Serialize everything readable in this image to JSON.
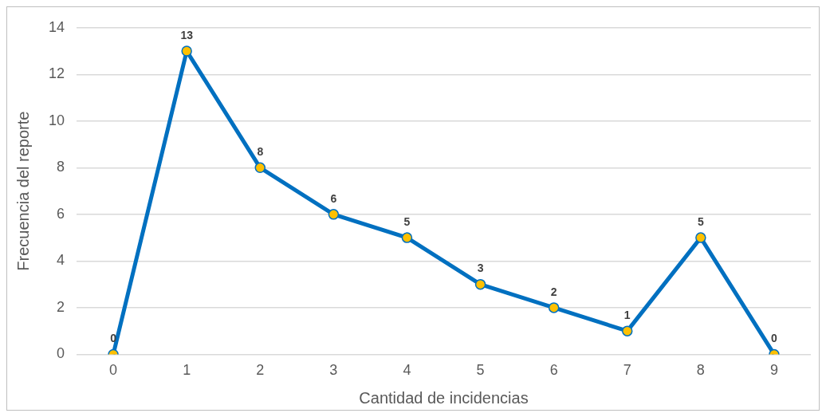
{
  "chart_data": {
    "type": "line",
    "xlabel": "Cantidad de incidencias",
    "ylabel": "Frecuencia del reporte",
    "categories": [
      "0",
      "1",
      "2",
      "3",
      "4",
      "5",
      "6",
      "7",
      "8",
      "9"
    ],
    "series": [
      {
        "color": "#0070c0",
        "values": [
          0,
          13,
          8,
          6,
          5,
          3,
          2,
          1,
          5,
          0
        ]
      }
    ],
    "ylim": [
      0,
      14
    ],
    "yticks": [
      0,
      2,
      4,
      6,
      8,
      10,
      12,
      14
    ],
    "grid": "y",
    "marker": "circle",
    "line_style": "solid",
    "data_labels": true,
    "legend": false
  }
}
